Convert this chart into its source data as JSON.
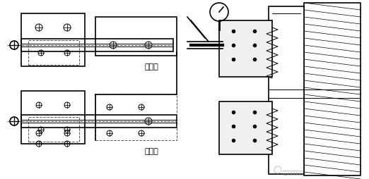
{
  "bg_color": "#ffffff",
  "line_color": "#000000",
  "dashed_color": "#555555",
  "hatch_color": "#888888",
  "text_color": "#000000",
  "label_chuandong": "従動側",
  "label_jizun": "基準側",
  "watermark": "宁比亚工业集团",
  "fig_width": 5.22,
  "fig_height": 2.55,
  "dpi": 100
}
